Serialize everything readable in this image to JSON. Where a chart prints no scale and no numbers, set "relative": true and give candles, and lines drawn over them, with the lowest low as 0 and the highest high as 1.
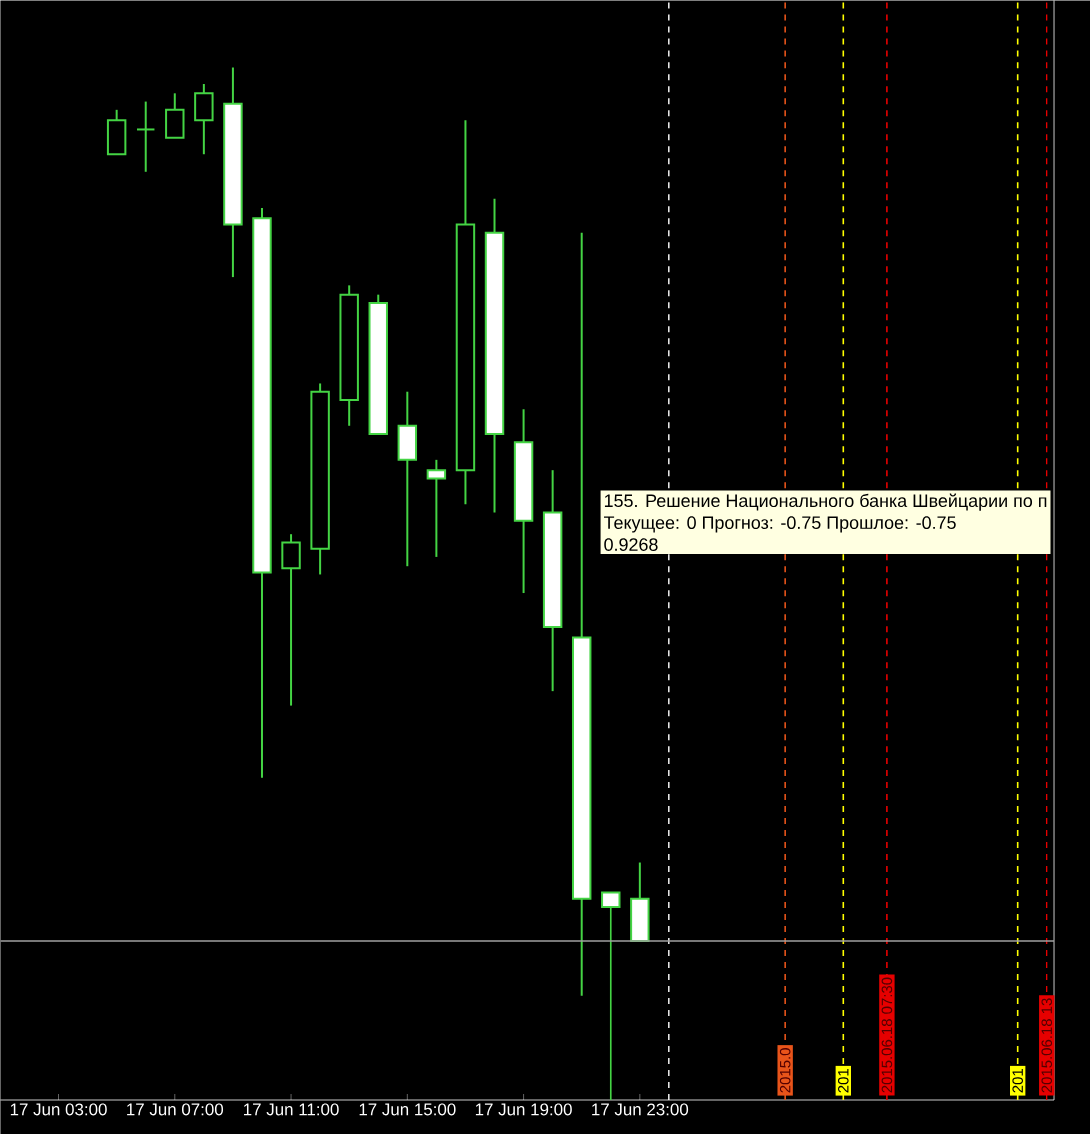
{
  "chart_data": {
    "type": "candlestick",
    "relative": true,
    "color": "#44d444",
    "colors": [
      "#000000",
      "#44d444",
      "#000000",
      "#000000",
      "#ffffff",
      "#ffffff",
      "#000000",
      "#000000",
      "#000000",
      "#ffffff",
      "#ffffff",
      "#ffffff",
      "#000000",
      "#ffffff",
      "#ffffff",
      "#ffffff",
      "#ffffff",
      "#ffffff",
      "#ffffff"
    ],
    "x": [
      "2015-06-17T05:00",
      "2015-06-17T06:00",
      "2015-06-17T07:00",
      "2015-06-17T08:00",
      "2015-06-17T09:00",
      "2015-06-17T10:00",
      "2015-06-17T11:00",
      "2015-06-17T12:00",
      "2015-06-17T13:00",
      "2015-06-17T14:00",
      "2015-06-17T15:00",
      "2015-06-17T16:00",
      "2015-06-17T17:00",
      "2015-06-17T18:00",
      "2015-06-17T19:00",
      "2015-06-17T20:00",
      "2015-06-17T21:00",
      "2015-06-17T22:00",
      "2015-06-17T23:00"
    ],
    "ohlc": [
      [
        0.916,
        0.959,
        0.916,
        0.949
      ],
      [
        0.94,
        0.967,
        0.899,
        0.94
      ],
      [
        0.932,
        0.975,
        0.932,
        0.959
      ],
      [
        0.949,
        0.984,
        0.916,
        0.975
      ],
      [
        0.965,
        1,
        0.797,
        0.848
      ],
      [
        0.854,
        0.864,
        0.312,
        0.511
      ],
      [
        0.515,
        0.548,
        0.382,
        0.54
      ],
      [
        0.534,
        0.694,
        0.509,
        0.686
      ],
      [
        0.678,
        0.789,
        0.653,
        0.78
      ],
      [
        0.772,
        0.78,
        0.645,
        0.645
      ],
      [
        0.653,
        0.686,
        0.517,
        0.62
      ],
      [
        0.61,
        0.62,
        0.526,
        0.602
      ],
      [
        0.61,
        0.949,
        0.577,
        0.848
      ],
      [
        0.84,
        0.873,
        0.569,
        0.645
      ],
      [
        0.637,
        0.669,
        0.491,
        0.561
      ],
      [
        0.569,
        0.61,
        0.396,
        0.458
      ],
      [
        0.448,
        0.84,
        0.101,
        0.195
      ],
      [
        0.201,
        0.201,
        0,
        0.187
      ],
      [
        0.195,
        0.23,
        0.154,
        0.154
      ]
    ],
    "xlim": [
      "2015-06-17T01:00",
      "2015-06-18T13:15"
    ],
    "xticks": [
      {
        "value": "2015-06-17T03:00",
        "label": "17 Jun 03:00"
      },
      {
        "value": "2015-06-17T07:00",
        "label": "17 Jun 07:00"
      },
      {
        "value": "2015-06-17T11:00",
        "label": "17 Jun 11:00"
      },
      {
        "value": "2015-06-17T15:00",
        "label": "17 Jun 15:00"
      },
      {
        "value": "2015-06-17T19:00",
        "label": "17 Jun 19:00"
      },
      {
        "value": "2015-06-17T23:00",
        "label": "17 Jun 23:00"
      }
    ],
    "ref_lines": [
      {
        "axis": "x",
        "value": "2015-06-18T00:00",
        "color": "#ffffff",
        "line_style": "dashed"
      },
      {
        "axis": "x",
        "value": "2015-06-18T04:00",
        "label": "2015.0",
        "color": "#e8541a",
        "line_style": "dashed"
      },
      {
        "axis": "x",
        "value": "2015-06-18T06:00",
        "label": "201",
        "color": "#ffff00",
        "line_style": "dashed"
      },
      {
        "axis": "x",
        "value": "2015-06-18T07:30",
        "label": "2015.06.18 07:30",
        "color": "#e60000",
        "line_style": "dashed"
      },
      {
        "axis": "x",
        "value": "2015-06-18T12:00",
        "label": "201",
        "color": "#ffff00",
        "line_style": "dashed"
      },
      {
        "axis": "x",
        "value": "2015-06-18T13:00",
        "label": "2015.06.18 13",
        "color": "#e60000",
        "line_style": "dashed"
      },
      {
        "axis": "y",
        "value": 0.154,
        "color": "#a0a0a0",
        "line_style": "solid"
      }
    ],
    "annotations": [
      "155. Решение Национального банка Швейцарии по п",
      "Текущее: 0 Прогноз: -0.75 Прошлое: -0.75",
      "0.9268"
    ]
  }
}
